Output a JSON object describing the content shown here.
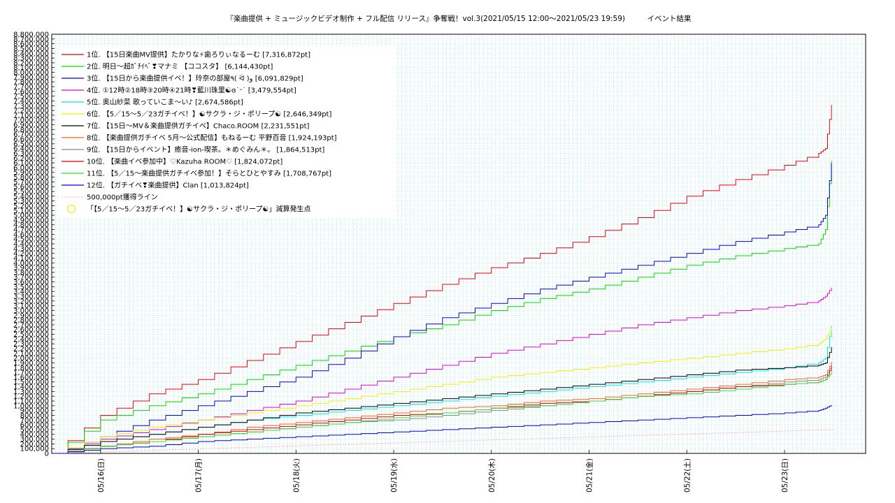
{
  "chart_data": {
    "type": "line",
    "title": "『楽曲提供 + ミュージックビデオ制作 + フル配信 リリース』争奪戦！vol.3(2021/05/15 12:00〜2021/05/23 19:59)　　　イベント結果",
    "xlabel": "",
    "ylabel": "",
    "ylim": [
      0,
      8800000
    ],
    "xlim": [
      "2021-05-15 12:00",
      "2021-05-23 19:59"
    ],
    "x_ticks": [
      "05/16(日)",
      "05/17(月)",
      "05/18(火)",
      "05/19(水)",
      "05/20(木)",
      "05/21(金)",
      "05/22(土)",
      "05/23(日)"
    ],
    "y_ticks": [
      "0",
      "100,000",
      "200,000",
      "300,000",
      "400,000",
      "500,000",
      "600,000",
      "700,000",
      "800,000",
      "900,000",
      "1,000,000",
      "1,100,000",
      "1,200,000",
      "1,300,000",
      "1,400,000",
      "1,500,000",
      "1,600,000",
      "1,700,000",
      "1,800,000",
      "1,900,000",
      "2,000,000",
      "2,100,000",
      "2,200,000",
      "2,300,000",
      "2,400,000",
      "2,500,000",
      "2,600,000",
      "2,700,000",
      "2,800,000",
      "2,900,000",
      "3,000,000",
      "3,100,000",
      "3,200,000",
      "3,300,000",
      "3,400,000",
      "3,500,000",
      "3,600,000",
      "3,700,000",
      "3,800,000",
      "3,900,000",
      "4,000,000",
      "4,100,000",
      "4,200,000",
      "4,300,000",
      "4,400,000",
      "4,500,000",
      "4,600,000",
      "4,700,000",
      "4,800,000",
      "4,900,000",
      "5,000,000",
      "5,100,000",
      "5,200,000",
      "5,300,000",
      "5,400,000",
      "5,500,000",
      "5,600,000",
      "5,700,000",
      "5,800,000",
      "5,900,000",
      "6,000,000",
      "6,100,000",
      "6,200,000",
      "6,300,000",
      "6,400,000",
      "6,500,000",
      "6,600,000",
      "6,700,000",
      "6,800,000",
      "6,900,000",
      "7,000,000",
      "7,100,000",
      "7,200,000",
      "7,300,000",
      "7,400,000",
      "7,500,000",
      "7,600,000",
      "7,700,000",
      "7,800,000",
      "7,900,000",
      "8,000,000",
      "8,100,000",
      "8,200,000",
      "8,300,000",
      "8,400,000",
      "8,500,000",
      "8,600,000",
      "8,700,000",
      "8,800,000"
    ],
    "grid": true,
    "legend_position": "top-left",
    "series": [
      {
        "name": "1位. 【15日楽曲MV提供】たかりな⚡歯ろりぃなるーむ [7,316,872pt]",
        "color": "#e8000b",
        "x": [
          0,
          0.5,
          1,
          1.5,
          2,
          2.5,
          3,
          3.5,
          4,
          4.5,
          5,
          5.5,
          6,
          6.5,
          7,
          7.5,
          7.85,
          7.92,
          7.98
        ],
        "y": [
          0,
          800000,
          1250000,
          1550000,
          1950000,
          2350000,
          2750000,
          3150000,
          3550000,
          3900000,
          4200000,
          4550000,
          4950000,
          5400000,
          5750000,
          6050000,
          6300000,
          6400000,
          7316872
        ]
      },
      {
        "name": "2位. 明日〜超ｶﾞﾁｲﾍﾞ❣マナミ 【ココスタ】 [6,144,430pt]",
        "color": "#00dd00",
        "x": [
          0,
          0.5,
          1,
          1.5,
          2,
          2.5,
          3,
          3.5,
          4,
          4.5,
          5,
          5.5,
          6,
          6.5,
          7,
          7.5,
          7.85,
          7.92,
          7.98
        ],
        "y": [
          0,
          700000,
          1000000,
          1250000,
          1550000,
          1850000,
          2150000,
          2450000,
          2700000,
          3000000,
          3250000,
          3450000,
          3700000,
          3950000,
          4150000,
          4300000,
          4400000,
          4700000,
          6144430
        ]
      },
      {
        "name": "3位. 【15日から楽曲提供イベ！】玲奈の部屋٩( ᐛ )و [6,091,829pt]",
        "color": "#0000dd",
        "x": [
          0,
          0.5,
          1,
          1.5,
          2,
          2.5,
          3,
          3.5,
          4,
          4.5,
          5,
          5.5,
          6,
          6.5,
          7,
          7.5,
          7.85,
          7.92,
          7.98
        ],
        "y": [
          0,
          350000,
          700000,
          1000000,
          1300000,
          1600000,
          2000000,
          2450000,
          2850000,
          3150000,
          3450000,
          3700000,
          3950000,
          4200000,
          4450000,
          4650000,
          4800000,
          5000000,
          6091829
        ]
      },
      {
        "name": "4位. ①12時②18時③20時④21時❣藍川珠里☯ɞ˙ᵕ˙ [3,479,554pt]",
        "color": "#e000e0",
        "x": [
          0,
          0.5,
          1,
          1.5,
          2,
          2.5,
          3,
          3.5,
          4,
          4.5,
          5,
          5.5,
          6,
          6.5,
          7,
          7.5,
          7.85,
          7.92,
          7.98
        ],
        "y": [
          0,
          300000,
          500000,
          700000,
          900000,
          1100000,
          1350000,
          1600000,
          1850000,
          2100000,
          2300000,
          2500000,
          2700000,
          2850000,
          3000000,
          3100000,
          3200000,
          3300000,
          3479554
        ]
      },
      {
        "name": "5位. 奥山紗菜 歌っていこま〜い♪ [2,674,586pt]",
        "color": "#00e8e8",
        "x": [
          0,
          0.5,
          1,
          1.5,
          2,
          2.5,
          3,
          3.5,
          4,
          4.5,
          5,
          5.5,
          6,
          6.5,
          7,
          7.5,
          7.85,
          7.92,
          7.98
        ],
        "y": [
          0,
          250000,
          400000,
          550000,
          700000,
          800000,
          900000,
          1000000,
          1100000,
          1200000,
          1300000,
          1400000,
          1500000,
          1600000,
          1700000,
          1800000,
          1900000,
          2000000,
          2674586
        ]
      },
      {
        "name": "6位. 【5／15〜5／23ガチイベ！】☯サクラ・ジ・ポリープ☯ [2,646,349pt]",
        "color": "#f0f000",
        "x": [
          0,
          0.5,
          1,
          1.5,
          2,
          2.5,
          3,
          3.5,
          4,
          4.5,
          5,
          5.5,
          6,
          6.5,
          7,
          7.5,
          7.85,
          7.92,
          7.98
        ],
        "y": [
          0,
          350000,
          550000,
          700000,
          850000,
          1000000,
          1150000,
          1300000,
          1450000,
          1600000,
          1700000,
          1800000,
          1900000,
          2000000,
          2100000,
          2200000,
          2300000,
          2400000,
          2646349
        ]
      },
      {
        "name": "7位. 【15日〜MV＆楽曲提供ガチイベ】Chaco.ROOM [2,231,551pt]",
        "color": "#000000",
        "x": [
          0,
          0.5,
          1,
          1.5,
          2,
          2.5,
          3,
          3.5,
          4,
          4.5,
          5,
          5.5,
          6,
          6.5,
          7,
          7.5,
          7.85,
          7.92,
          7.98
        ],
        "y": [
          0,
          250000,
          400000,
          550000,
          700000,
          850000,
          950000,
          1050000,
          1150000,
          1250000,
          1350000,
          1450000,
          1550000,
          1650000,
          1750000,
          1800000,
          1850000,
          1900000,
          2231551
        ]
      },
      {
        "name": "8位. 【楽曲提供ガチイベ 5月〜公式配信】もねるーむ 平野百音 [1,924,193pt]",
        "color": "#ff6020",
        "x": [
          0,
          0.5,
          1,
          1.5,
          2,
          2.5,
          3,
          3.5,
          4,
          4.5,
          5,
          5.5,
          6,
          6.5,
          7,
          7.5,
          7.85,
          7.92,
          7.98
        ],
        "y": [
          0,
          150000,
          300000,
          400000,
          550000,
          650000,
          750000,
          850000,
          950000,
          1000000,
          1100000,
          1150000,
          1250000,
          1350000,
          1450000,
          1550000,
          1600000,
          1650000,
          1924193
        ]
      },
      {
        "name": "9位. 【15日からイベント】癒音-ion-喫茶。＊めぐみん＊。 [1,864,513pt]",
        "color": "#888888",
        "x": [
          0,
          0.5,
          1,
          1.5,
          2,
          2.5,
          3,
          3.5,
          4,
          4.5,
          5,
          5.5,
          6,
          6.5,
          7,
          7.5,
          7.85,
          7.92,
          7.98
        ],
        "y": [
          0,
          150000,
          250000,
          350000,
          450000,
          550000,
          650000,
          700000,
          800000,
          900000,
          1000000,
          1100000,
          1200000,
          1300000,
          1400000,
          1500000,
          1550000,
          1600000,
          1864513
        ]
      },
      {
        "name": "10位. 【楽曲イベ参加中】♡Kazuha ROOM♡ [1,824,072pt]",
        "color": "#d40000",
        "x": [
          0,
          0.5,
          1,
          1.5,
          2,
          2.5,
          3,
          3.5,
          4,
          4.5,
          5,
          5.5,
          6,
          6.5,
          7,
          7.5,
          7.85,
          7.92,
          7.98
        ],
        "y": [
          0,
          150000,
          250000,
          400000,
          500000,
          600000,
          700000,
          800000,
          850000,
          950000,
          1050000,
          1100000,
          1200000,
          1300000,
          1400000,
          1450000,
          1500000,
          1550000,
          1824072
        ]
      },
      {
        "name": "11位. 【5／15〜楽曲提供ガチイベ参加！】そらとひとやすみ [1,708,767pt]",
        "color": "#33dd33",
        "x": [
          0,
          0.5,
          1,
          1.5,
          2,
          2.5,
          3,
          3.5,
          4,
          4.5,
          5,
          5.5,
          6,
          6.5,
          7,
          7.5,
          7.85,
          7.92,
          7.98
        ],
        "y": [
          0,
          150000,
          250000,
          350000,
          450000,
          550000,
          650000,
          750000,
          850000,
          950000,
          1000000,
          1100000,
          1200000,
          1250000,
          1350000,
          1450000,
          1500000,
          1550000,
          1708767
        ]
      },
      {
        "name": "12位. 【ガチイベ❣楽曲提供】Clan [1,013,824pt]",
        "color": "#0000e0",
        "x": [
          0,
          0.5,
          1,
          1.5,
          2,
          2.5,
          3,
          3.5,
          4,
          4.5,
          5,
          5.5,
          6,
          6.5,
          7,
          7.5,
          7.85,
          7.92,
          7.98
        ],
        "y": [
          0,
          100000,
          150000,
          250000,
          300000,
          350000,
          400000,
          450000,
          500000,
          550000,
          600000,
          650000,
          700000,
          750000,
          800000,
          850000,
          900000,
          950000,
          1013824
        ]
      }
    ],
    "reference_line": {
      "name": "500,000pt獲得ライン",
      "color": "#ffaaaa",
      "x": [
        0,
        8
      ],
      "y": [
        0,
        500000
      ]
    },
    "marker": {
      "name": "「【5／15〜5／23ガチイベ！】☯サクラ・ジ・ポリープ☯」減算発生点",
      "color": "#f0f000"
    }
  }
}
